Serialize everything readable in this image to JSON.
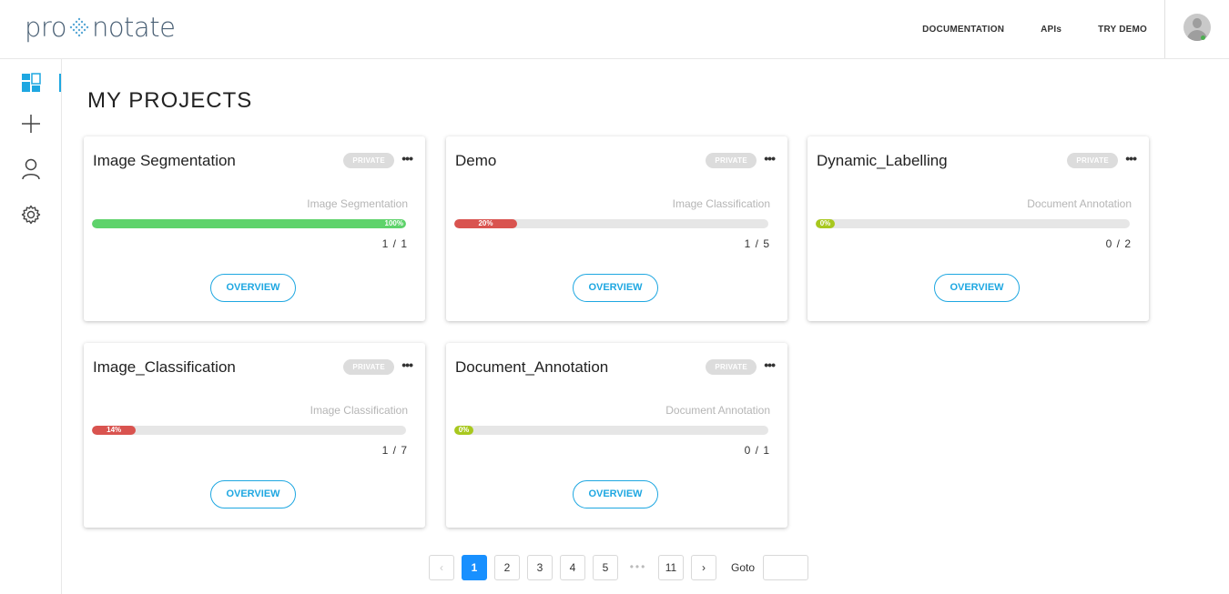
{
  "header": {
    "logo_left": "pro",
    "logo_right": "notate",
    "nav": [
      "DOCUMENTATION",
      "APIs",
      "TRY DEMO"
    ]
  },
  "sidebar": {
    "items": [
      {
        "icon": "dashboard-icon",
        "active": true
      },
      {
        "icon": "plus-icon",
        "active": false
      },
      {
        "icon": "user-icon",
        "active": false
      },
      {
        "icon": "gear-icon",
        "active": false
      }
    ]
  },
  "main": {
    "title": "MY PROJECTS",
    "overview_label": "OVERVIEW",
    "projects": [
      {
        "name": "Image Segmentation",
        "visibility": "PRIVATE",
        "type": "Image Segmentation",
        "progress": 100,
        "progress_label": "100%",
        "count": "1 / 1",
        "color": "#5ed36b"
      },
      {
        "name": "Demo",
        "visibility": "PRIVATE",
        "type": "Image Classification",
        "progress": 20,
        "progress_label": "20%",
        "count": "1 / 5",
        "color": "#d9534f"
      },
      {
        "name": "Dynamic_Labelling",
        "visibility": "PRIVATE",
        "type": "Document Annotation",
        "progress": 0,
        "progress_label": "0%",
        "count": "0 / 2",
        "color": "#a8c81e"
      },
      {
        "name": "Image_Classification",
        "visibility": "PRIVATE",
        "type": "Image Classification",
        "progress": 14,
        "progress_label": "14%",
        "count": "1 / 7",
        "color": "#d9534f"
      },
      {
        "name": "Document_Annotation",
        "visibility": "PRIVATE",
        "type": "Document Annotation",
        "progress": 0,
        "progress_label": "0%",
        "count": "0 / 1",
        "color": "#a8c81e"
      }
    ]
  },
  "pagination": {
    "prev": "‹",
    "pages": [
      "1",
      "2",
      "3",
      "4",
      "5"
    ],
    "ellipsis": "•••",
    "last": "11",
    "next": "›",
    "current": "1",
    "goto_label": "Goto",
    "goto_value": ""
  }
}
